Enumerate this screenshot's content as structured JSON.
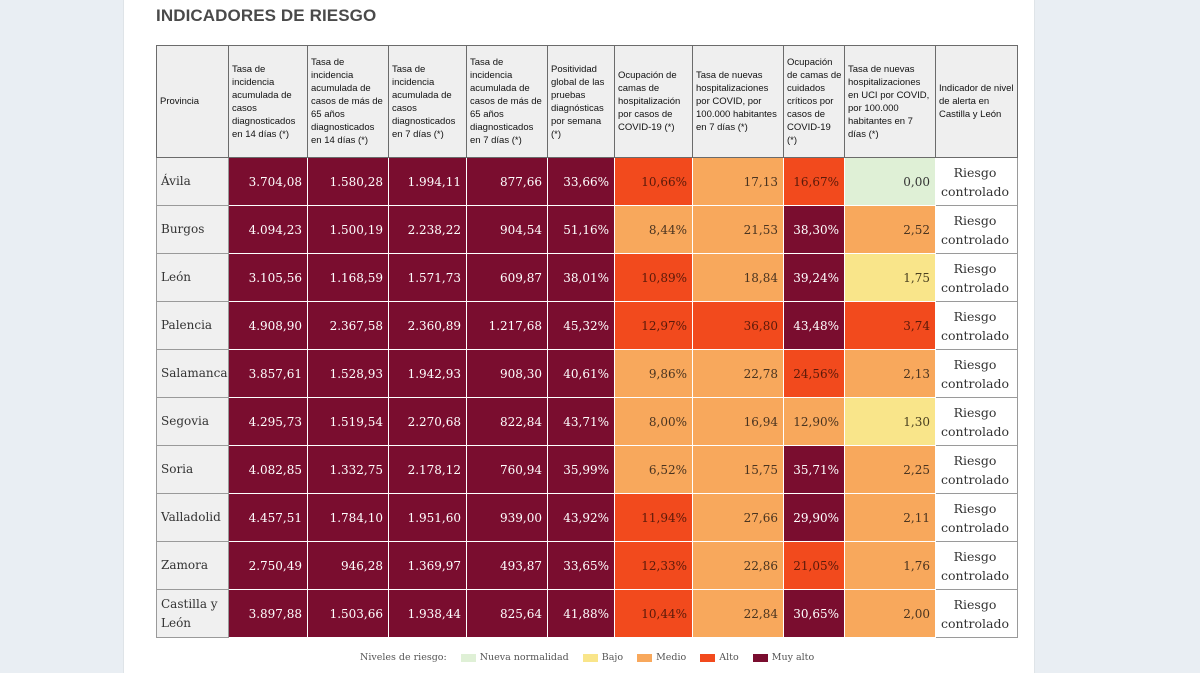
{
  "title": "INDICADORES DE RIESGO",
  "columns": [
    "Provincia",
    "Tasa de incidencia acumulada de casos diagnosticados en 14 días (*)",
    "Tasa de incidencia acumulada de casos de más de 65 años diagnosticados en 14 días (*)",
    "Tasa de incidencia acumulada de casos diagnosticados en 7 días (*)",
    "Tasa de incidencia acumulada de casos de más de 65 años diagnosticados en 7 días (*)",
    "Positividad global de las pruebas diagnósticas por semana (*)",
    "Ocupación de camas de hospitalización por casos de COVID-19 (*)",
    "Tasa de nuevas hospitalizaciones por COVID, por 100.000 habitantes en 7 días (*)",
    "Ocupación de camas de cuidados críticos por casos de COVID-19 (*)",
    "Tasa de nuevas hospitalizaciones en UCI por COVID, por 100.000 habitantes en 7 días (*)",
    "Indicador de nivel de alerta en Castilla y León"
  ],
  "rows": [
    {
      "province": "Ávila",
      "values": [
        "3.704,08",
        "1.580,28",
        "1.994,11",
        "877,66",
        "33,66%",
        "10,66%",
        "17,13",
        "16,67%",
        "0,00"
      ],
      "levels": [
        "muy",
        "muy",
        "muy",
        "muy",
        "muy",
        "alto",
        "medio",
        "alto",
        "nueva"
      ],
      "alert": "Riesgo controlado"
    },
    {
      "province": "Burgos",
      "values": [
        "4.094,23",
        "1.500,19",
        "2.238,22",
        "904,54",
        "51,16%",
        "8,44%",
        "21,53",
        "38,30%",
        "2,52"
      ],
      "levels": [
        "muy",
        "muy",
        "muy",
        "muy",
        "muy",
        "medio",
        "medio",
        "muy",
        "medio"
      ],
      "alert": "Riesgo controlado"
    },
    {
      "province": "León",
      "values": [
        "3.105,56",
        "1.168,59",
        "1.571,73",
        "609,87",
        "38,01%",
        "10,89%",
        "18,84",
        "39,24%",
        "1,75"
      ],
      "levels": [
        "muy",
        "muy",
        "muy",
        "muy",
        "muy",
        "alto",
        "medio",
        "muy",
        "bajo"
      ],
      "alert": "Riesgo controlado"
    },
    {
      "province": "Palencia",
      "values": [
        "4.908,90",
        "2.367,58",
        "2.360,89",
        "1.217,68",
        "45,32%",
        "12,97%",
        "36,80",
        "43,48%",
        "3,74"
      ],
      "levels": [
        "muy",
        "muy",
        "muy",
        "muy",
        "muy",
        "alto",
        "alto",
        "muy",
        "alto"
      ],
      "alert": "Riesgo controlado"
    },
    {
      "province": "Salamanca",
      "values": [
        "3.857,61",
        "1.528,93",
        "1.942,93",
        "908,30",
        "40,61%",
        "9,86%",
        "22,78",
        "24,56%",
        "2,13"
      ],
      "levels": [
        "muy",
        "muy",
        "muy",
        "muy",
        "muy",
        "medio",
        "medio",
        "alto",
        "medio"
      ],
      "alert": "Riesgo controlado"
    },
    {
      "province": "Segovia",
      "values": [
        "4.295,73",
        "1.519,54",
        "2.270,68",
        "822,84",
        "43,71%",
        "8,00%",
        "16,94",
        "12,90%",
        "1,30"
      ],
      "levels": [
        "muy",
        "muy",
        "muy",
        "muy",
        "muy",
        "medio",
        "medio",
        "medio",
        "bajo"
      ],
      "alert": "Riesgo controlado"
    },
    {
      "province": "Soria",
      "values": [
        "4.082,85",
        "1.332,75",
        "2.178,12",
        "760,94",
        "35,99%",
        "6,52%",
        "15,75",
        "35,71%",
        "2,25"
      ],
      "levels": [
        "muy",
        "muy",
        "muy",
        "muy",
        "muy",
        "medio",
        "medio",
        "muy",
        "medio"
      ],
      "alert": "Riesgo controlado"
    },
    {
      "province": "Valladolid",
      "values": [
        "4.457,51",
        "1.784,10",
        "1.951,60",
        "939,00",
        "43,92%",
        "11,94%",
        "27,66",
        "29,90%",
        "2,11"
      ],
      "levels": [
        "muy",
        "muy",
        "muy",
        "muy",
        "muy",
        "alto",
        "medio",
        "muy",
        "medio"
      ],
      "alert": "Riesgo controlado"
    },
    {
      "province": "Zamora",
      "values": [
        "2.750,49",
        "946,28",
        "1.369,97",
        "493,87",
        "33,65%",
        "12,33%",
        "22,86",
        "21,05%",
        "1,76"
      ],
      "levels": [
        "muy",
        "muy",
        "muy",
        "muy",
        "muy",
        "alto",
        "medio",
        "alto",
        "medio"
      ],
      "alert": "Riesgo controlado"
    },
    {
      "province": "Castilla y León",
      "values": [
        "3.897,88",
        "1.503,66",
        "1.938,44",
        "825,64",
        "41,88%",
        "10,44%",
        "22,84",
        "30,65%",
        "2,00"
      ],
      "levels": [
        "muy",
        "muy",
        "muy",
        "muy",
        "muy",
        "alto",
        "medio",
        "muy",
        "medio"
      ],
      "alert": "Riesgo controlado"
    }
  ],
  "legend": {
    "label": "Niveles de riesgo:",
    "items": [
      {
        "label": "Nueva normalidad",
        "color": "#dff0d6"
      },
      {
        "label": "Bajo",
        "color": "#f9e58a"
      },
      {
        "label": "Medio",
        "color": "#f8a85c"
      },
      {
        "label": "Alto",
        "color": "#f24a1d"
      },
      {
        "label": "Muy alto",
        "color": "#7a0d2f"
      }
    ]
  }
}
